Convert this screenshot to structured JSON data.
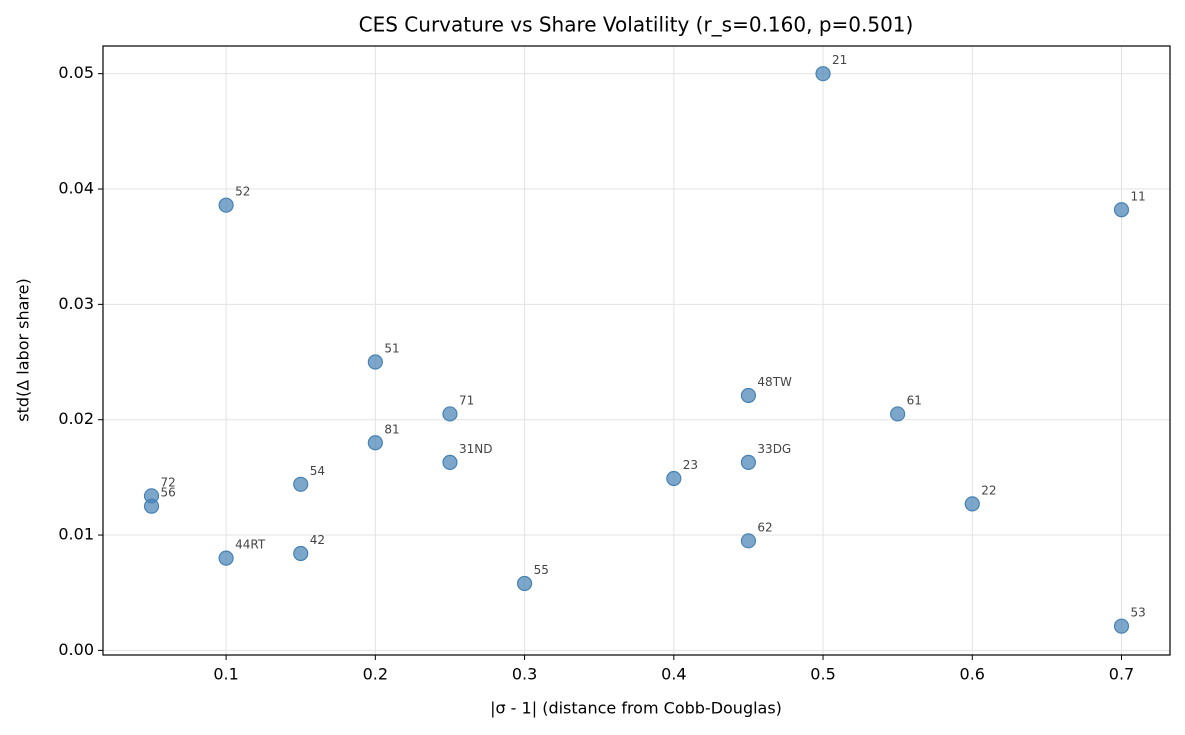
{
  "chart_data": {
    "type": "scatter",
    "title": "CES Curvature vs Share Volatility (r_s=0.160, p=0.501)",
    "xlabel": "|σ - 1| (distance from Cobb-Douglas)",
    "ylabel": "std(Δ labor share)",
    "color": "#4682b4",
    "grid": true,
    "x": [
      0.5,
      0.1,
      0.7,
      0.2,
      0.45,
      0.25,
      0.55,
      0.2,
      0.25,
      0.45,
      0.4,
      0.15,
      0.05,
      0.05,
      0.6,
      0.45,
      0.15,
      0.1,
      0.3,
      0.7
    ],
    "values": [
      0.05,
      0.0386,
      0.0382,
      0.025,
      0.0221,
      0.0205,
      0.0205,
      0.018,
      0.0163,
      0.0163,
      0.0149,
      0.0144,
      0.0134,
      0.0125,
      0.0127,
      0.0095,
      0.0084,
      0.008,
      0.0058,
      0.0021
    ],
    "labels": [
      "21",
      "52",
      "11",
      "51",
      "48TW",
      "71",
      "61",
      "81",
      "31ND",
      "33DG",
      "23",
      "54",
      "72",
      "56",
      "22",
      "62",
      "42",
      "44RT",
      "55",
      "53"
    ],
    "xlim": [
      0.0175,
      0.7325
    ],
    "ylim": [
      -0.0004,
      0.0524
    ],
    "xticks": [
      0.1,
      0.2,
      0.3,
      0.4,
      0.5,
      0.6,
      0.7
    ],
    "yticks": [
      {
        "value": 0,
        "label": "0.00"
      },
      0.01,
      0.02,
      0.03,
      0.04,
      0.05
    ]
  }
}
